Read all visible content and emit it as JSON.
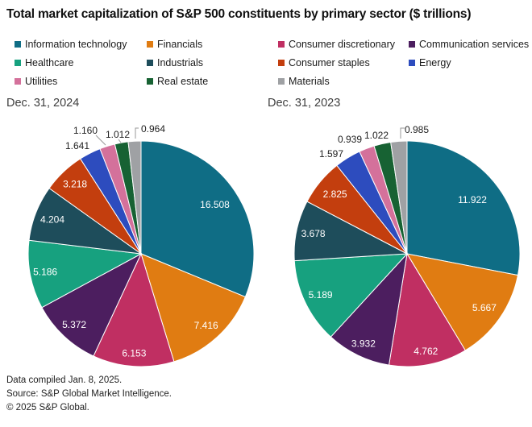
{
  "title": "Total market capitalization of S&P 500 constituents by primary sector ($ trillions)",
  "legend": {
    "columns": [
      {
        "items": [
          {
            "label": "Information technology",
            "color": "#0F6D85"
          },
          {
            "label": "Healthcare",
            "color": "#17A17F"
          },
          {
            "label": "Utilities",
            "color": "#D4719B"
          }
        ]
      },
      {
        "items": [
          {
            "label": "Financials",
            "color": "#E07C12"
          },
          {
            "label": "Industrials",
            "color": "#1E4D5B"
          },
          {
            "label": "Real estate",
            "color": "#176233"
          }
        ]
      },
      {
        "items": [
          {
            "label": "Consumer discretionary",
            "color": "#C02F62"
          },
          {
            "label": "Consumer staples",
            "color": "#C33E0E"
          },
          {
            "label": "Materials",
            "color": "#9FA1A4"
          }
        ]
      },
      {
        "items": [
          {
            "label": "Communication services",
            "color": "#4C1E5F"
          },
          {
            "label": "Energy",
            "color": "#2D4CBE"
          }
        ]
      }
    ]
  },
  "chart_data": [
    {
      "type": "pie",
      "title": "Dec. 31, 2024",
      "unit": "$ trillions",
      "start_angle_deg": 0,
      "direction": "clockwise",
      "labels": [
        "Information technology",
        "Financials",
        "Consumer discretionary",
        "Communication services",
        "Healthcare",
        "Industrials",
        "Consumer staples",
        "Energy",
        "Utilities",
        "Real estate",
        "Materials"
      ],
      "values": [
        16.508,
        7.416,
        6.153,
        5.372,
        5.186,
        4.204,
        3.218,
        1.641,
        1.16,
        1.012,
        0.964
      ],
      "colors": [
        "#0F6D85",
        "#E07C12",
        "#C02F62",
        "#4C1E5F",
        "#17A17F",
        "#1E4D5B",
        "#C33E0E",
        "#2D4CBE",
        "#D4719B",
        "#176233",
        "#9FA1A4"
      ]
    },
    {
      "type": "pie",
      "title": "Dec. 31, 2023",
      "unit": "$ trillions",
      "start_angle_deg": 0,
      "direction": "clockwise",
      "labels": [
        "Information technology",
        "Financials",
        "Consumer discretionary",
        "Communication services",
        "Healthcare",
        "Industrials",
        "Consumer staples",
        "Energy",
        "Utilities",
        "Real estate",
        "Materials"
      ],
      "values": [
        11.922,
        5.667,
        4.762,
        3.932,
        5.189,
        3.678,
        2.825,
        1.597,
        0.939,
        1.022,
        0.985
      ],
      "colors": [
        "#0F6D85",
        "#E07C12",
        "#C02F62",
        "#4C1E5F",
        "#17A17F",
        "#1E4D5B",
        "#C33E0E",
        "#2D4CBE",
        "#D4719B",
        "#176233",
        "#9FA1A4"
      ]
    }
  ],
  "footer": {
    "lines": [
      "Data compiled Jan. 8, 2025.",
      "Source: S&P Global Market Intelligence.",
      "© 2025 S&P Global."
    ]
  }
}
